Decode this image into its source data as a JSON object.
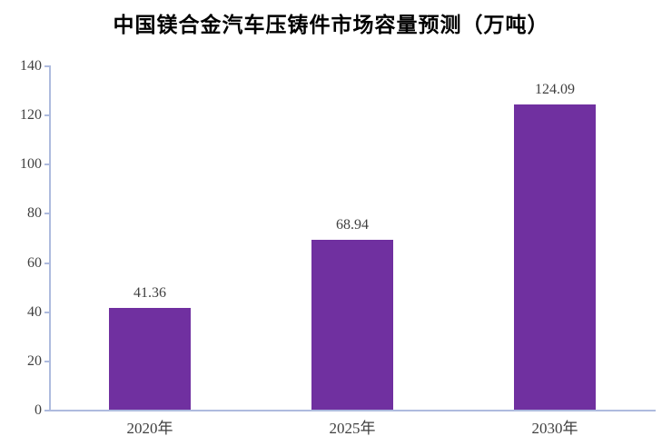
{
  "title": "中国镁合金汽车压铸件市场容量预测（万吨）",
  "chart_data": {
    "type": "bar",
    "categories": [
      "2020年",
      "2025年",
      "2030年"
    ],
    "values": [
      41.36,
      68.94,
      124.09
    ],
    "data_labels": [
      "41.36",
      "68.94",
      "124.09"
    ],
    "title": "中国镁合金汽车压铸件市场容量预测（万吨）",
    "xlabel": "",
    "ylabel": "",
    "ylim": [
      0,
      140
    ],
    "yticks": [
      0,
      20,
      40,
      60,
      80,
      100,
      120,
      140
    ],
    "grid": false,
    "legend_position": "none",
    "colors": {
      "bar": "#7030A0",
      "axis": "#AEBBDE",
      "tick_label": "#3F3F3F",
      "data_label": "#3F3F3F",
      "title": "#000000"
    }
  }
}
